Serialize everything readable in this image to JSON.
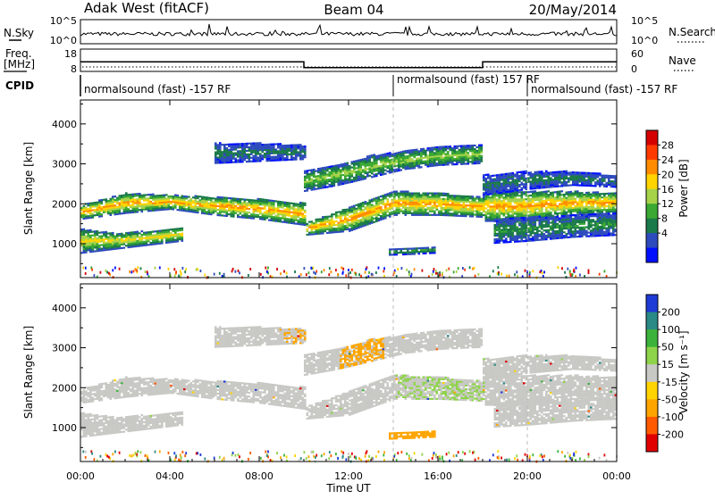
{
  "header": {
    "station": "Adak West (fitACF)",
    "beam": "Beam 04",
    "date": "20/May/2014"
  },
  "top_strip": {
    "left_label": "N.Sky",
    "right_label": "N.Search",
    "left_ticks": [
      "10^5",
      "10^0"
    ],
    "right_ticks": [
      "10^5",
      "10^0"
    ]
  },
  "freq_strip": {
    "left_label_1": "Freq.",
    "left_label_2": "[MHz]",
    "right_label": "Nave",
    "left_ticks": [
      "18",
      "8"
    ],
    "right_ticks": [
      "60",
      "0"
    ]
  },
  "cpid_strip": {
    "label": "CPID",
    "segments": [
      "normalsound (fast) -157 RF",
      "normalsound (fast) 157 RF",
      "normalsound (fast) -157 RF"
    ]
  },
  "power_panel": {
    "ylabel": "Slant Range [km]",
    "colorbar_label": "Power [dB]",
    "colorbar_ticks": [
      "28",
      "24",
      "20",
      "16",
      "12",
      "8",
      "4"
    ],
    "colorbar_colors": [
      "#d40000",
      "#ff3a00",
      "#ff8c00",
      "#ffd400",
      "#a6d24a",
      "#3aa832",
      "#1b7a4a",
      "#2e4bbd",
      "#0010ff"
    ]
  },
  "velocity_panel": {
    "ylabel": "Slant Range [km]",
    "colorbar_label": "Velocity [m s⁻¹]",
    "colorbar_ticks": [
      "200",
      "100",
      "50",
      "15",
      "-15",
      "-50",
      "-100",
      "-200"
    ],
    "colorbar_colors": [
      "#1f3bd6",
      "#2a8a86",
      "#3bb33a",
      "#8ed44a",
      "#c8c8c4",
      "#ffd400",
      "#ffa500",
      "#ff5a00",
      "#e00000"
    ]
  },
  "xaxis": {
    "label": "Time UT",
    "ticks": [
      "00:00",
      "04:00",
      "08:00",
      "12:00",
      "16:00",
      "20:00",
      "00:00"
    ]
  },
  "chart_data": {
    "type": "heatmap",
    "x_unit": "hours UT",
    "x_range": [
      0,
      24
    ],
    "y_range_km": [
      150,
      4600
    ],
    "y_ticks": [
      1000,
      2000,
      3000,
      4000
    ],
    "frequency_segments": [
      {
        "start": 0,
        "end": 10,
        "freq_mhz": 14.5
      },
      {
        "start": 10,
        "end": 18,
        "freq_mhz": 10.2
      },
      {
        "start": 18,
        "end": 24,
        "freq_mhz": 14.5
      }
    ],
    "cpid_boundaries": [
      0,
      14,
      20
    ],
    "dashed_time_markers": [
      14,
      20
    ],
    "scatter_bands": [
      {
        "name": "main",
        "t": [
          0,
          2,
          4,
          6,
          8,
          10,
          10.01,
          12,
          14,
          16,
          18,
          18.01,
          20,
          22,
          24
        ],
        "r_lo": [
          1600,
          1750,
          1850,
          1700,
          1600,
          1450,
          1200,
          1300,
          1700,
          1700,
          1650,
          1550,
          1550,
          1700,
          1750
        ],
        "r_hi": [
          1950,
          2250,
          2200,
          2150,
          2100,
          2000,
          1500,
          1900,
          2300,
          2250,
          2150,
          2300,
          2300,
          2300,
          2250
        ],
        "power_peak_db": 24
      },
      {
        "name": "low_early",
        "t": [
          0,
          1.5,
          3,
          4.5
        ],
        "r_lo": [
          750,
          850,
          950,
          1050
        ],
        "r_hi": [
          1350,
          1250,
          1300,
          1400
        ],
        "power_peak_db": 20
      },
      {
        "name": "upper_mid",
        "t": [
          10,
          11.5,
          13,
          14.5,
          16,
          18
        ],
        "r_lo": [
          2300,
          2450,
          2650,
          2850,
          2950,
          3000
        ],
        "r_hi": [
          2800,
          2950,
          3200,
          3300,
          3400,
          3450
        ],
        "power_peak_db": 16
      },
      {
        "name": "upper_early",
        "t": [
          6,
          8,
          10
        ],
        "r_lo": [
          3000,
          3050,
          3100
        ],
        "r_hi": [
          3500,
          3500,
          3450
        ],
        "power_peak_db": 8
      },
      {
        "name": "patch_14h",
        "t": [
          13.8,
          14.8,
          15.8
        ],
        "r_lo": [
          700,
          720,
          750
        ],
        "r_hi": [
          850,
          880,
          900
        ],
        "power_peak_db": 12
      },
      {
        "name": "low_late",
        "t": [
          18.5,
          20,
          22,
          24
        ],
        "r_lo": [
          1000,
          1050,
          1150,
          1200
        ],
        "r_hi": [
          1600,
          1650,
          1700,
          1750
        ],
        "power_peak_db": 10
      },
      {
        "name": "upper_late",
        "t": [
          18,
          20,
          22,
          24
        ],
        "r_lo": [
          2200,
          2350,
          2450,
          2400
        ],
        "r_hi": [
          2700,
          2800,
          2800,
          2700
        ],
        "power_peak_db": 8
      }
    ]
  }
}
